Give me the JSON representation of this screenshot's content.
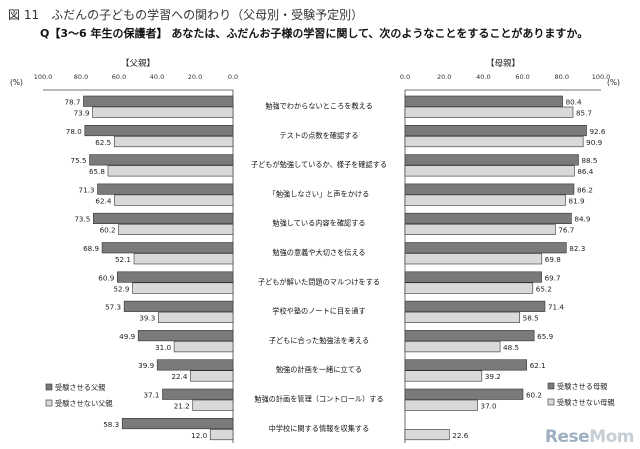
{
  "header": {
    "title": "図 11　ふだんの子どもの学習への関わり（父母別・受験予定別）",
    "question": "Q【3～6 年生の保護者】 あなたは、ふだんお子様の学習に関して、次のようなことをすることがありますか。"
  },
  "watermark": {
    "part1": "Rese",
    "part2": "Mom"
  },
  "chart_data": {
    "type": "bar",
    "orientation": "horizontal",
    "unit_label": "(%)",
    "categories": [
      "勉強でわからないところを教える",
      "テストの点数を確認する",
      "子どもが勉強しているか、様子を確認する",
      "「勉強しなさい」と声をかける",
      "勉強している内容を確認する",
      "勉強の意義や大切さを伝える",
      "子どもが解いた問題のマルつけをする",
      "学校や塾のノートに目を通す",
      "子どもに合った勉強法を考える",
      "勉強の計画を一緒に立てる",
      "勉強の計画を管理（コントロール）する",
      "中学校に関する情報を収集する"
    ],
    "panels": [
      {
        "title": "【父親】",
        "direction": "reversed",
        "xlim": [
          0,
          100
        ],
        "ticks": [
          "100.0",
          "80.0",
          "60.0",
          "40.0",
          "20.0",
          "0.0"
        ],
        "series": [
          {
            "name": "受験させる父親",
            "color": "#7a7a7a",
            "values": [
              78.7,
              78.0,
              75.5,
              71.3,
              73.5,
              68.9,
              60.9,
              57.3,
              49.9,
              39.9,
              37.1,
              58.3
            ]
          },
          {
            "name": "受験させない父親",
            "color": "#d9d9d9",
            "values": [
              73.9,
              62.5,
              65.8,
              62.4,
              60.2,
              52.1,
              52.9,
              39.3,
              31.0,
              22.4,
              21.2,
              12.0
            ]
          }
        ]
      },
      {
        "title": "【母親】",
        "direction": "normal",
        "xlim": [
          0,
          100
        ],
        "ticks": [
          "0.0",
          "20.0",
          "40.0",
          "60.0",
          "80.0",
          "100.0"
        ],
        "series": [
          {
            "name": "受験させる母親",
            "color": "#7a7a7a",
            "values": [
              80.4,
              92.6,
              88.5,
              86.2,
              84.9,
              82.3,
              69.7,
              71.4,
              65.9,
              62.1,
              60.2,
              null
            ]
          },
          {
            "name": "受験させない母親",
            "color": "#d9d9d9",
            "values": [
              85.7,
              90.9,
              86.4,
              81.9,
              76.7,
              69.8,
              65.2,
              58.5,
              48.5,
              39.2,
              37.0,
              22.6
            ]
          }
        ]
      }
    ]
  }
}
